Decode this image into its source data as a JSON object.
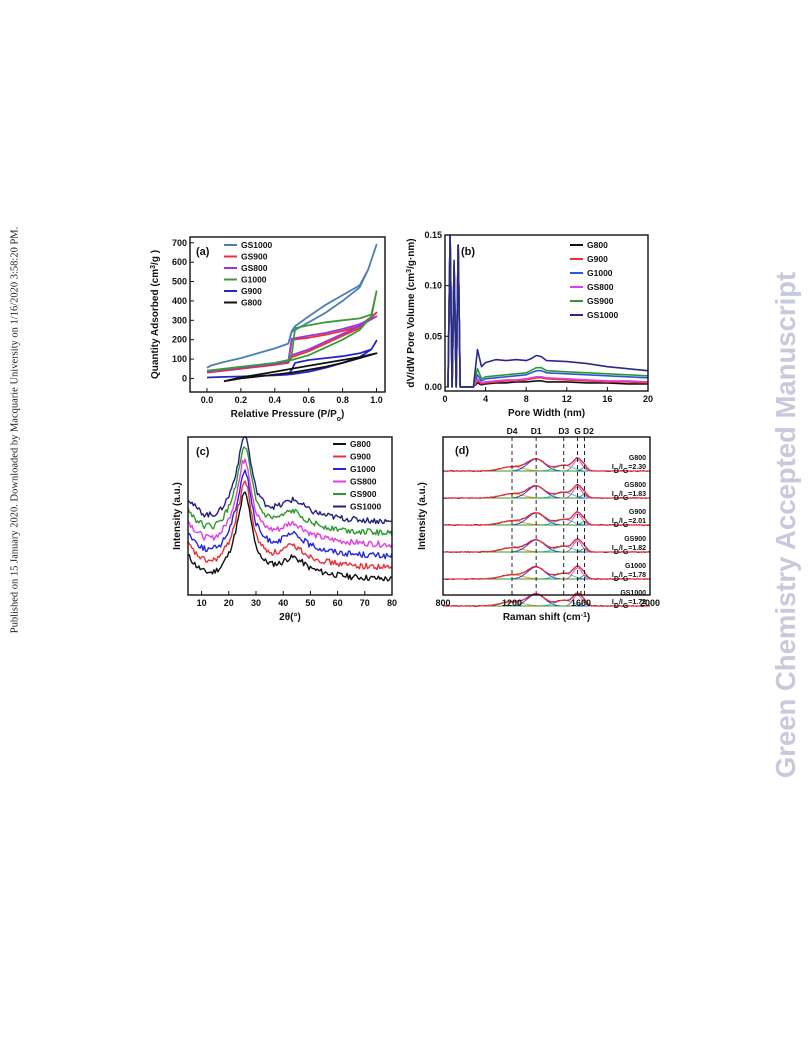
{
  "side_note": "Published on 15 January 2020. Downloaded by Macquarie University on 1/16/2020 3:58:20 PM.",
  "watermark": "Green Chemistry Accepted Manuscript",
  "chart_data": [
    {
      "panel": "(a)",
      "type": "line",
      "xlabel": "Relative Pressure (P/P",
      "xlabel_sub": "o",
      "xlabel_tail": ")",
      "ylabel": "Quantity Adsorbed (cm",
      "ylabel_sup": "3",
      "ylabel_tail": "/g )",
      "xlim": [
        -0.1,
        1.05
      ],
      "ylim": [
        -70,
        730
      ],
      "xticks": [
        0.0,
        0.2,
        0.4,
        0.6,
        0.8,
        1.0
      ],
      "xtick_labels": [
        "0.0",
        "0.2",
        "0.4",
        "0.6",
        "0.8",
        "1.0"
      ],
      "yticks": [
        0,
        100,
        200,
        300,
        400,
        500,
        600,
        700
      ],
      "ytick_labels": [
        "0",
        "100",
        "200",
        "300",
        "400",
        "500",
        "600",
        "700"
      ],
      "legend_position": "top-left",
      "series": [
        {
          "name": "GS1000",
          "color": "#4a7fb5",
          "x": [
            0.0,
            0.02,
            0.1,
            0.2,
            0.3,
            0.4,
            0.48,
            0.5,
            0.6,
            0.7,
            0.8,
            0.9,
            0.95,
            1.0,
            1.0,
            0.95,
            0.9,
            0.8,
            0.7,
            0.6,
            0.52,
            0.5,
            0.48,
            0.4,
            0.3,
            0.2,
            0.1,
            0.02,
            0.0
          ],
          "y": [
            55,
            65,
            85,
            105,
            130,
            155,
            180,
            240,
            290,
            340,
            400,
            470,
            560,
            690,
            690,
            560,
            480,
            430,
            380,
            320,
            270,
            245,
            180,
            155,
            130,
            105,
            85,
            65,
            55
          ]
        },
        {
          "name": "GS900",
          "color": "#e8313a",
          "x": [
            0.0,
            0.1,
            0.2,
            0.3,
            0.4,
            0.48,
            0.5,
            0.6,
            0.7,
            0.8,
            0.9,
            1.0,
            1.0,
            0.9,
            0.8,
            0.7,
            0.6,
            0.5,
            0.48,
            0.4,
            0.3,
            0.2,
            0.1,
            0.0
          ],
          "y": [
            30,
            40,
            50,
            60,
            70,
            80,
            110,
            140,
            180,
            220,
            260,
            340,
            340,
            270,
            245,
            225,
            210,
            200,
            80,
            70,
            60,
            50,
            40,
            30
          ]
        },
        {
          "name": "GS800",
          "color": "#9b35d6",
          "x": [
            0.0,
            0.1,
            0.2,
            0.3,
            0.4,
            0.48,
            0.5,
            0.6,
            0.7,
            0.8,
            0.9,
            1.0,
            1.0,
            0.9,
            0.8,
            0.7,
            0.6,
            0.5,
            0.48,
            0.4,
            0.3,
            0.2,
            0.1,
            0.0
          ],
          "y": [
            35,
            45,
            55,
            65,
            75,
            85,
            120,
            150,
            190,
            230,
            270,
            320,
            320,
            280,
            255,
            235,
            220,
            205,
            85,
            75,
            65,
            55,
            45,
            35
          ]
        },
        {
          "name": "G1000",
          "color": "#3a9a3a",
          "x": [
            0.0,
            0.1,
            0.2,
            0.3,
            0.4,
            0.5,
            0.6,
            0.7,
            0.8,
            0.9,
            0.97,
            1.0,
            1.0,
            0.97,
            0.9,
            0.8,
            0.7,
            0.6,
            0.52,
            0.5,
            0.48,
            0.4,
            0.3,
            0.2,
            0.1,
            0.0
          ],
          "y": [
            40,
            50,
            60,
            70,
            80,
            95,
            120,
            160,
            200,
            250,
            320,
            450,
            450,
            330,
            310,
            300,
            290,
            275,
            260,
            120,
            95,
            80,
            70,
            60,
            50,
            40
          ]
        },
        {
          "name": "G900",
          "color": "#2525c8",
          "x": [
            0.0,
            0.1,
            0.2,
            0.3,
            0.4,
            0.5,
            0.6,
            0.7,
            0.8,
            0.9,
            0.97,
            1.0,
            1.0,
            0.97,
            0.9,
            0.8,
            0.7,
            0.6,
            0.52,
            0.5,
            0.48,
            0.4,
            0.3,
            0.2,
            0.1,
            0.0
          ],
          "y": [
            5,
            8,
            10,
            13,
            16,
            22,
            35,
            55,
            80,
            110,
            150,
            195,
            195,
            150,
            130,
            115,
            105,
            95,
            80,
            45,
            20,
            16,
            13,
            10,
            8,
            5
          ]
        },
        {
          "name": "G800",
          "color": "#111111",
          "x": [
            0.1,
            0.2,
            0.3,
            0.4,
            0.5,
            0.6,
            0.7,
            0.8,
            0.9,
            1.0,
            1.0,
            0.9,
            0.8,
            0.7,
            0.6,
            0.5,
            0.4,
            0.3,
            0.2,
            0.1
          ],
          "y": [
            -15,
            0,
            10,
            20,
            30,
            45,
            60,
            80,
            105,
            130,
            130,
            110,
            95,
            80,
            65,
            50,
            35,
            20,
            5,
            -15
          ]
        }
      ]
    },
    {
      "panel": "(b)",
      "type": "line",
      "xlabel": "Pore Width (nm)",
      "ylabel": "dV/dW Pore Volume (cm",
      "ylabel_sup": "3",
      "ylabel_tail": "/g·nm)",
      "xlim": [
        0,
        20
      ],
      "ylim": [
        -0.004,
        0.15
      ],
      "xticks": [
        0,
        4,
        8,
        12,
        16,
        20
      ],
      "xtick_labels": [
        "0",
        "4",
        "8",
        "12",
        "16",
        "20"
      ],
      "yticks": [
        0.0,
        0.05,
        0.1,
        0.15
      ],
      "ytick_labels": [
        "0.00",
        "0.05",
        "0.10",
        "0.15"
      ],
      "legend_position": "top-right",
      "series": [
        {
          "name": "G800",
          "color": "#111111",
          "x": [
            0.3,
            0.5,
            0.7,
            0.9,
            1.1,
            1.3,
            1.5,
            2.0,
            2.8,
            3.2,
            3.6,
            4.0,
            5,
            6,
            7,
            8,
            9,
            9.5,
            10,
            12,
            14,
            16,
            18,
            20
          ],
          "y": [
            0.0,
            0.15,
            0.0,
            0.12,
            0.0,
            0.14,
            0.0,
            0.0,
            0.0,
            0.004,
            0.002,
            0.003,
            0.004,
            0.004,
            0.005,
            0.005,
            0.006,
            0.006,
            0.005,
            0.005,
            0.004,
            0.004,
            0.003,
            0.003
          ]
        },
        {
          "name": "G900",
          "color": "#e8313a",
          "x": [
            0.3,
            0.5,
            0.7,
            0.9,
            1.1,
            1.3,
            1.5,
            2.0,
            2.8,
            3.2,
            3.6,
            4.0,
            5,
            6,
            7,
            8,
            9,
            9.5,
            10,
            12,
            14,
            16,
            18,
            20
          ],
          "y": [
            0.0,
            0.15,
            0.0,
            0.12,
            0.0,
            0.14,
            0.0,
            0.0,
            0.0,
            0.006,
            0.003,
            0.004,
            0.005,
            0.006,
            0.006,
            0.007,
            0.009,
            0.009,
            0.008,
            0.007,
            0.006,
            0.005,
            0.005,
            0.004
          ]
        },
        {
          "name": "G1000",
          "color": "#2f55e0",
          "x": [
            0.3,
            0.5,
            0.7,
            0.9,
            1.1,
            1.3,
            1.5,
            2.0,
            2.8,
            3.2,
            3.6,
            4.0,
            5,
            6,
            7,
            8,
            9,
            9.5,
            10,
            12,
            14,
            16,
            18,
            20
          ],
          "y": [
            0.0,
            0.15,
            0.0,
            0.12,
            0.0,
            0.14,
            0.0,
            0.0,
            0.0,
            0.012,
            0.006,
            0.008,
            0.009,
            0.01,
            0.011,
            0.012,
            0.016,
            0.016,
            0.014,
            0.013,
            0.012,
            0.011,
            0.01,
            0.009
          ]
        },
        {
          "name": "GS800",
          "color": "#e040e0",
          "x": [
            0.3,
            0.5,
            0.7,
            0.9,
            1.1,
            1.3,
            1.5,
            2.0,
            2.8,
            3.2,
            3.6,
            4.0,
            5,
            6,
            7,
            8,
            9,
            9.5,
            10,
            12,
            14,
            16,
            18,
            20
          ],
          "y": [
            0.0,
            0.15,
            0.0,
            0.12,
            0.0,
            0.14,
            0.0,
            0.0,
            0.0,
            0.008,
            0.004,
            0.005,
            0.006,
            0.007,
            0.007,
            0.008,
            0.01,
            0.01,
            0.009,
            0.008,
            0.007,
            0.006,
            0.006,
            0.005
          ]
        },
        {
          "name": "GS900",
          "color": "#2e9a2e",
          "x": [
            0.3,
            0.5,
            0.7,
            0.9,
            1.1,
            1.3,
            1.5,
            2.0,
            2.8,
            3.2,
            3.6,
            4.0,
            5,
            6,
            7,
            8,
            9,
            9.5,
            10,
            12,
            14,
            16,
            18,
            20
          ],
          "y": [
            0.0,
            0.15,
            0.0,
            0.12,
            0.0,
            0.14,
            0.0,
            0.0,
            0.0,
            0.018,
            0.008,
            0.01,
            0.011,
            0.012,
            0.013,
            0.014,
            0.019,
            0.019,
            0.016,
            0.015,
            0.014,
            0.013,
            0.012,
            0.011
          ]
        },
        {
          "name": "GS1000",
          "color": "#2a2a8a",
          "x": [
            0.3,
            0.5,
            0.7,
            0.9,
            1.1,
            1.3,
            1.5,
            2.0,
            2.8,
            3.2,
            3.6,
            4.0,
            5,
            6,
            7,
            8,
            8.5,
            9,
            9.5,
            10,
            12,
            14,
            16,
            18,
            20
          ],
          "y": [
            0.0,
            0.15,
            0.0,
            0.125,
            0.0,
            0.14,
            0.0,
            0.0,
            0.0,
            0.037,
            0.02,
            0.024,
            0.027,
            0.026,
            0.027,
            0.026,
            0.028,
            0.031,
            0.03,
            0.026,
            0.025,
            0.023,
            0.02,
            0.018,
            0.016
          ]
        }
      ]
    },
    {
      "panel": "(c)",
      "type": "line",
      "xlabel": "2θ(°)",
      "ylabel": "Intensity (a.u.)",
      "xlim": [
        5,
        80
      ],
      "ylim": [
        0,
        10
      ],
      "xticks": [
        10,
        20,
        30,
        40,
        50,
        60,
        70,
        80
      ],
      "xtick_labels": [
        "10",
        "20",
        "30",
        "40",
        "50",
        "60",
        "70",
        "80"
      ],
      "legend_position": "top-right",
      "series": [
        {
          "name": "G800",
          "color": "#111111",
          "offset": 0
        },
        {
          "name": "G900",
          "color": "#e8313a",
          "offset": 1
        },
        {
          "name": "G1000",
          "color": "#2525e0",
          "offset": 2
        },
        {
          "name": "GS800",
          "color": "#e040e0",
          "offset": 3
        },
        {
          "name": "GS900",
          "color": "#2e9a2e",
          "offset": 4
        },
        {
          "name": "GS1000",
          "color": "#22227a",
          "offset": 5
        }
      ],
      "profile": {
        "x": [
          5,
          8,
          11,
          14,
          17,
          20,
          22,
          24,
          25,
          26,
          27,
          28,
          30,
          33,
          36,
          39,
          42,
          44,
          47,
          50,
          55,
          60,
          65,
          70,
          75,
          80
        ],
        "y": [
          1.5,
          0.9,
          0.55,
          0.5,
          0.8,
          1.6,
          2.6,
          4.0,
          4.9,
          5.2,
          4.7,
          3.6,
          2.0,
          1.2,
          1.0,
          1.05,
          1.35,
          1.4,
          1.1,
          0.75,
          0.5,
          0.35,
          0.25,
          0.2,
          0.15,
          0.1
        ]
      }
    },
    {
      "panel": "(d)",
      "type": "line",
      "xlabel": "Raman shift (cm",
      "xlabel_sup": "-1",
      "xlabel_tail": ")",
      "ylabel": "Intensity (a.u.)",
      "xlim": [
        800,
        2000
      ],
      "xticks": [
        800,
        1200,
        1600,
        2000
      ],
      "xtick_labels": [
        "800",
        "1200",
        "1600",
        "2000"
      ],
      "band_labels": [
        {
          "name": "D4",
          "x": 1200
        },
        {
          "name": "D1",
          "x": 1340
        },
        {
          "name": "D3",
          "x": 1500
        },
        {
          "name": "G",
          "x": 1580
        },
        {
          "name": "D2",
          "x": 1620
        }
      ],
      "fit_colors": {
        "measured": "#111111",
        "fit": "#e8313a",
        "D1": "#2525e0",
        "D2": "#2e9a2e",
        "D3": "#40c0c0",
        "G": "#e040e0",
        "D4": "#e8a020"
      },
      "spectra": [
        {
          "sample": "G800",
          "ratio_label": "I",
          "ratio_sub": "D",
          "ratio_mid": "/I",
          "ratio_sub2": "G",
          "ratio_value": "=2.30"
        },
        {
          "sample": "GS800",
          "ratio_label": "I",
          "ratio_sub": "D",
          "ratio_mid": "/I",
          "ratio_sub2": "G",
          "ratio_value": "=1.83"
        },
        {
          "sample": "G900",
          "ratio_label": "I",
          "ratio_sub": "D",
          "ratio_mid": "/I",
          "ratio_sub2": "G",
          "ratio_value": "=2.01"
        },
        {
          "sample": "GS900",
          "ratio_label": "I",
          "ratio_sub": "D",
          "ratio_mid": "/I",
          "ratio_sub2": "G",
          "ratio_value": "=1.82"
        },
        {
          "sample": "G1000",
          "ratio_label": "I",
          "ratio_sub": "D",
          "ratio_mid": "/I",
          "ratio_sub2": "G",
          "ratio_value": "=1.78"
        },
        {
          "sample": "GS1000",
          "ratio_label": "I",
          "ratio_sub": "D",
          "ratio_mid": "/I",
          "ratio_sub2": "G",
          "ratio_value": "=1.72"
        }
      ]
    }
  ]
}
